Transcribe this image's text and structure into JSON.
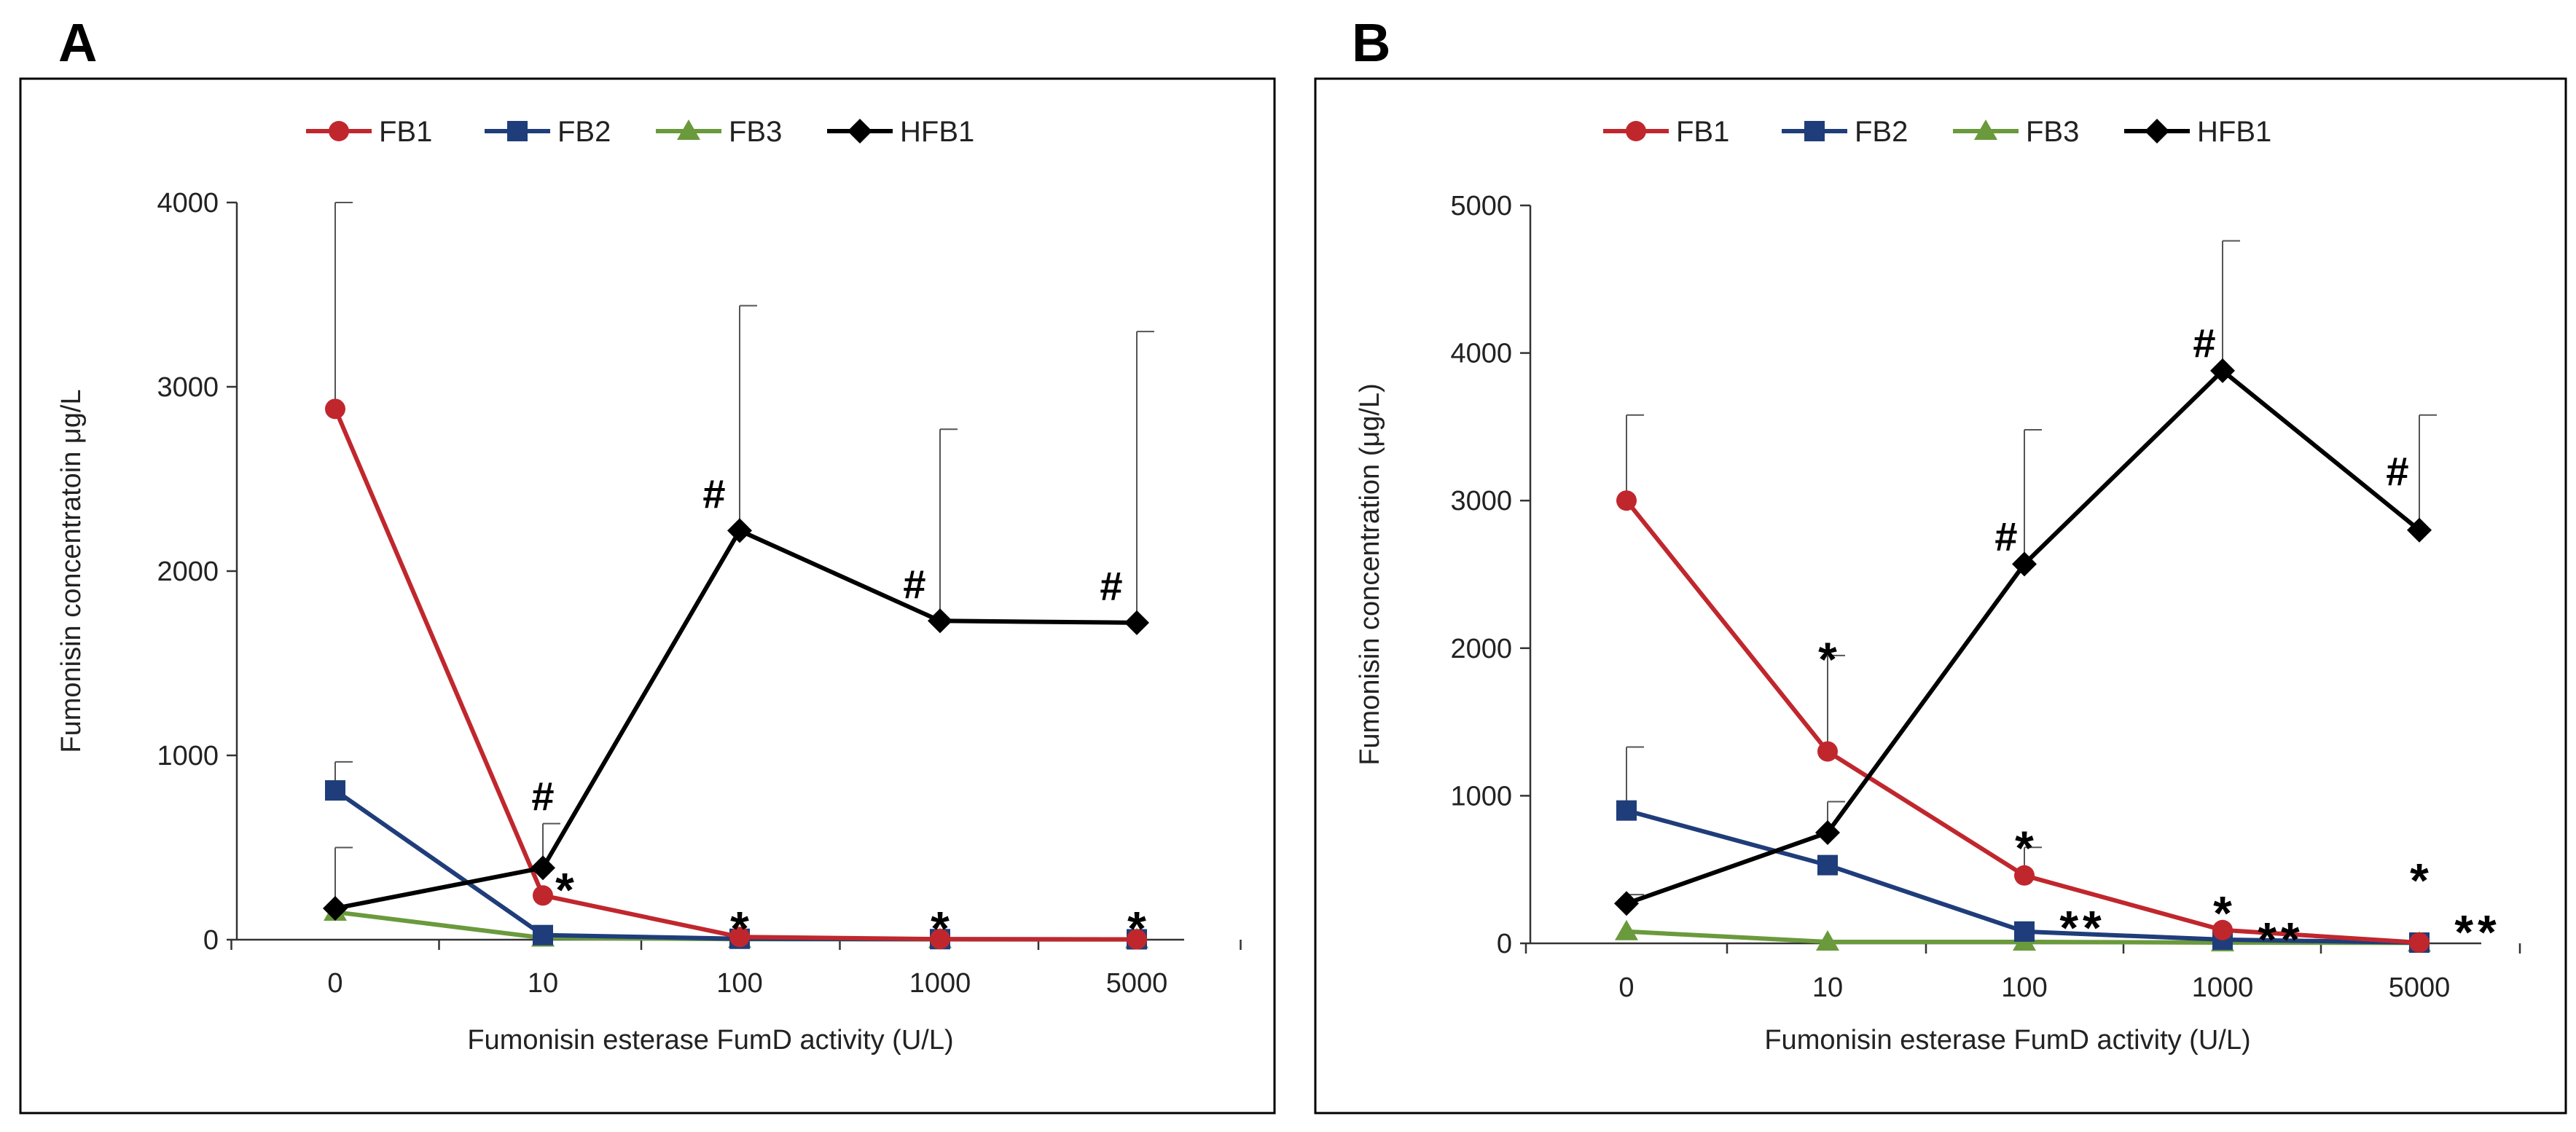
{
  "chart_data": [
    {
      "panel": "A",
      "type": "line",
      "categories": [
        "0",
        "10",
        "100",
        "1000",
        "5000"
      ],
      "ylabel": "Fumonisin concentratoin μg/L",
      "xlabel": "Fumonisin esterase FumD activity (U/L)",
      "ylim": [
        0,
        4000
      ],
      "yticks": [
        0,
        1000,
        2000,
        3000,
        4000
      ],
      "legend_position": "top",
      "series": [
        {
          "name": "FB1",
          "color": "#c0272d",
          "marker": "circle",
          "values": [
            2880,
            240,
            15,
            3,
            2
          ],
          "errors": [
            1120,
            0,
            0,
            0,
            0
          ]
        },
        {
          "name": "FB2",
          "color": "#1f3d7a",
          "marker": "square",
          "values": [
            810,
            25,
            5,
            3,
            2
          ],
          "errors": [
            155,
            0,
            0,
            0,
            0
          ]
        },
        {
          "name": "FB3",
          "color": "#6a9a3c",
          "marker": "triangle",
          "values": [
            150,
            10,
            3,
            2,
            1
          ],
          "errors": [
            0,
            0,
            0,
            0,
            0
          ]
        },
        {
          "name": "HFB1",
          "color": "#000000",
          "marker": "diamond",
          "values": [
            170,
            390,
            2220,
            1730,
            1720
          ],
          "errors": [
            330,
            240,
            1220,
            1040,
            1580
          ]
        }
      ],
      "annotations": [
        {
          "text": "#",
          "category": 1,
          "value": 780
        },
        {
          "text": "*",
          "category": 1,
          "value": 330
        },
        {
          "text": "#",
          "category": 2,
          "value": 2420
        },
        {
          "text": "*",
          "category": 2,
          "value": 120
        },
        {
          "text": "#",
          "category": 3,
          "value": 1930
        },
        {
          "text": "*",
          "category": 3,
          "value": 120
        },
        {
          "text": "#",
          "category": 4,
          "value": 1920
        },
        {
          "text": "*",
          "category": 4,
          "value": 120
        }
      ]
    },
    {
      "panel": "B",
      "type": "line",
      "categories": [
        "0",
        "10",
        "100",
        "1000",
        "5000"
      ],
      "ylabel": "Fumonisin concentration (μg/L)",
      "xlabel": "Fumonisin esterase FumD activity (U/L)",
      "ylim": [
        0,
        5000
      ],
      "yticks": [
        0,
        1000,
        2000,
        3000,
        4000,
        5000
      ],
      "legend_position": "top",
      "series": [
        {
          "name": "FB1",
          "color": "#c0272d",
          "marker": "circle",
          "values": [
            3000,
            1300,
            460,
            90,
            5
          ],
          "errors": [
            580,
            650,
            190,
            0,
            0
          ]
        },
        {
          "name": "FB2",
          "color": "#1f3d7a",
          "marker": "square",
          "values": [
            900,
            530,
            80,
            25,
            5
          ],
          "errors": [
            430,
            0,
            0,
            0,
            0
          ]
        },
        {
          "name": "FB3",
          "color": "#6a9a3c",
          "marker": "triangle",
          "values": [
            80,
            10,
            10,
            5,
            3
          ],
          "errors": [
            0,
            0,
            0,
            0,
            0
          ]
        },
        {
          "name": "HFB1",
          "color": "#000000",
          "marker": "diamond",
          "values": [
            270,
            750,
            2570,
            3880,
            2800
          ],
          "errors": [
            60,
            210,
            910,
            880,
            780
          ]
        }
      ],
      "annotations": [
        {
          "text": "*",
          "category": 1,
          "value": 2000
        },
        {
          "text": "#",
          "category": 2,
          "value": 2760
        },
        {
          "text": "*",
          "category": 2,
          "value": 720
        },
        {
          "text": "**",
          "category": 2,
          "value": 180
        },
        {
          "text": "#",
          "category": 3,
          "value": 4070
        },
        {
          "text": "*",
          "category": 3,
          "value": 280
        },
        {
          "text": "**",
          "category": 3,
          "value": 100
        },
        {
          "text": "#",
          "category": 4,
          "value": 3200
        },
        {
          "text": "*",
          "category": 4,
          "value": 500
        },
        {
          "text": "**",
          "category": 4,
          "value": 150
        }
      ]
    }
  ]
}
